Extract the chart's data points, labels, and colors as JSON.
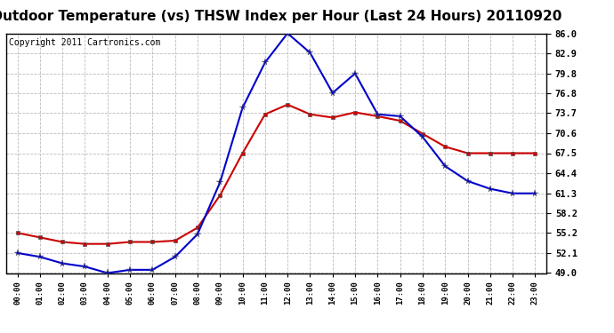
{
  "title": "Outdoor Temperature (vs) THSW Index per Hour (Last 24 Hours) 20110920",
  "copyright": "Copyright 2011 Cartronics.com",
  "x_labels": [
    "00:00",
    "01:00",
    "02:00",
    "03:00",
    "04:00",
    "05:00",
    "06:00",
    "07:00",
    "08:00",
    "09:00",
    "10:00",
    "11:00",
    "12:00",
    "13:00",
    "14:00",
    "15:00",
    "16:00",
    "17:00",
    "18:00",
    "19:00",
    "20:00",
    "21:00",
    "22:00",
    "23:00"
  ],
  "temp_red": [
    55.2,
    54.5,
    53.8,
    53.5,
    53.5,
    53.8,
    53.8,
    54.0,
    56.0,
    61.0,
    67.5,
    73.5,
    75.0,
    73.5,
    73.0,
    73.8,
    73.2,
    72.5,
    70.5,
    68.5,
    67.5,
    67.5,
    67.5,
    67.5
  ],
  "thsw_blue": [
    52.1,
    51.5,
    50.5,
    50.0,
    49.0,
    49.5,
    49.5,
    51.5,
    55.0,
    63.0,
    74.5,
    81.5,
    86.0,
    83.0,
    76.8,
    79.8,
    73.5,
    73.2,
    70.0,
    65.5,
    63.2,
    62.0,
    61.3,
    61.3
  ],
  "y_ticks": [
    49.0,
    52.1,
    55.2,
    58.2,
    61.3,
    64.4,
    67.5,
    70.6,
    73.7,
    76.8,
    79.8,
    82.9,
    86.0
  ],
  "y_min": 49.0,
  "y_max": 86.0,
  "bg_color": "#ffffff",
  "plot_bg_color": "#ffffff",
  "grid_color": "#bbbbbb",
  "red_color": "#cc0000",
  "blue_color": "#0000cc",
  "title_fontsize": 11,
  "copyright_fontsize": 7
}
